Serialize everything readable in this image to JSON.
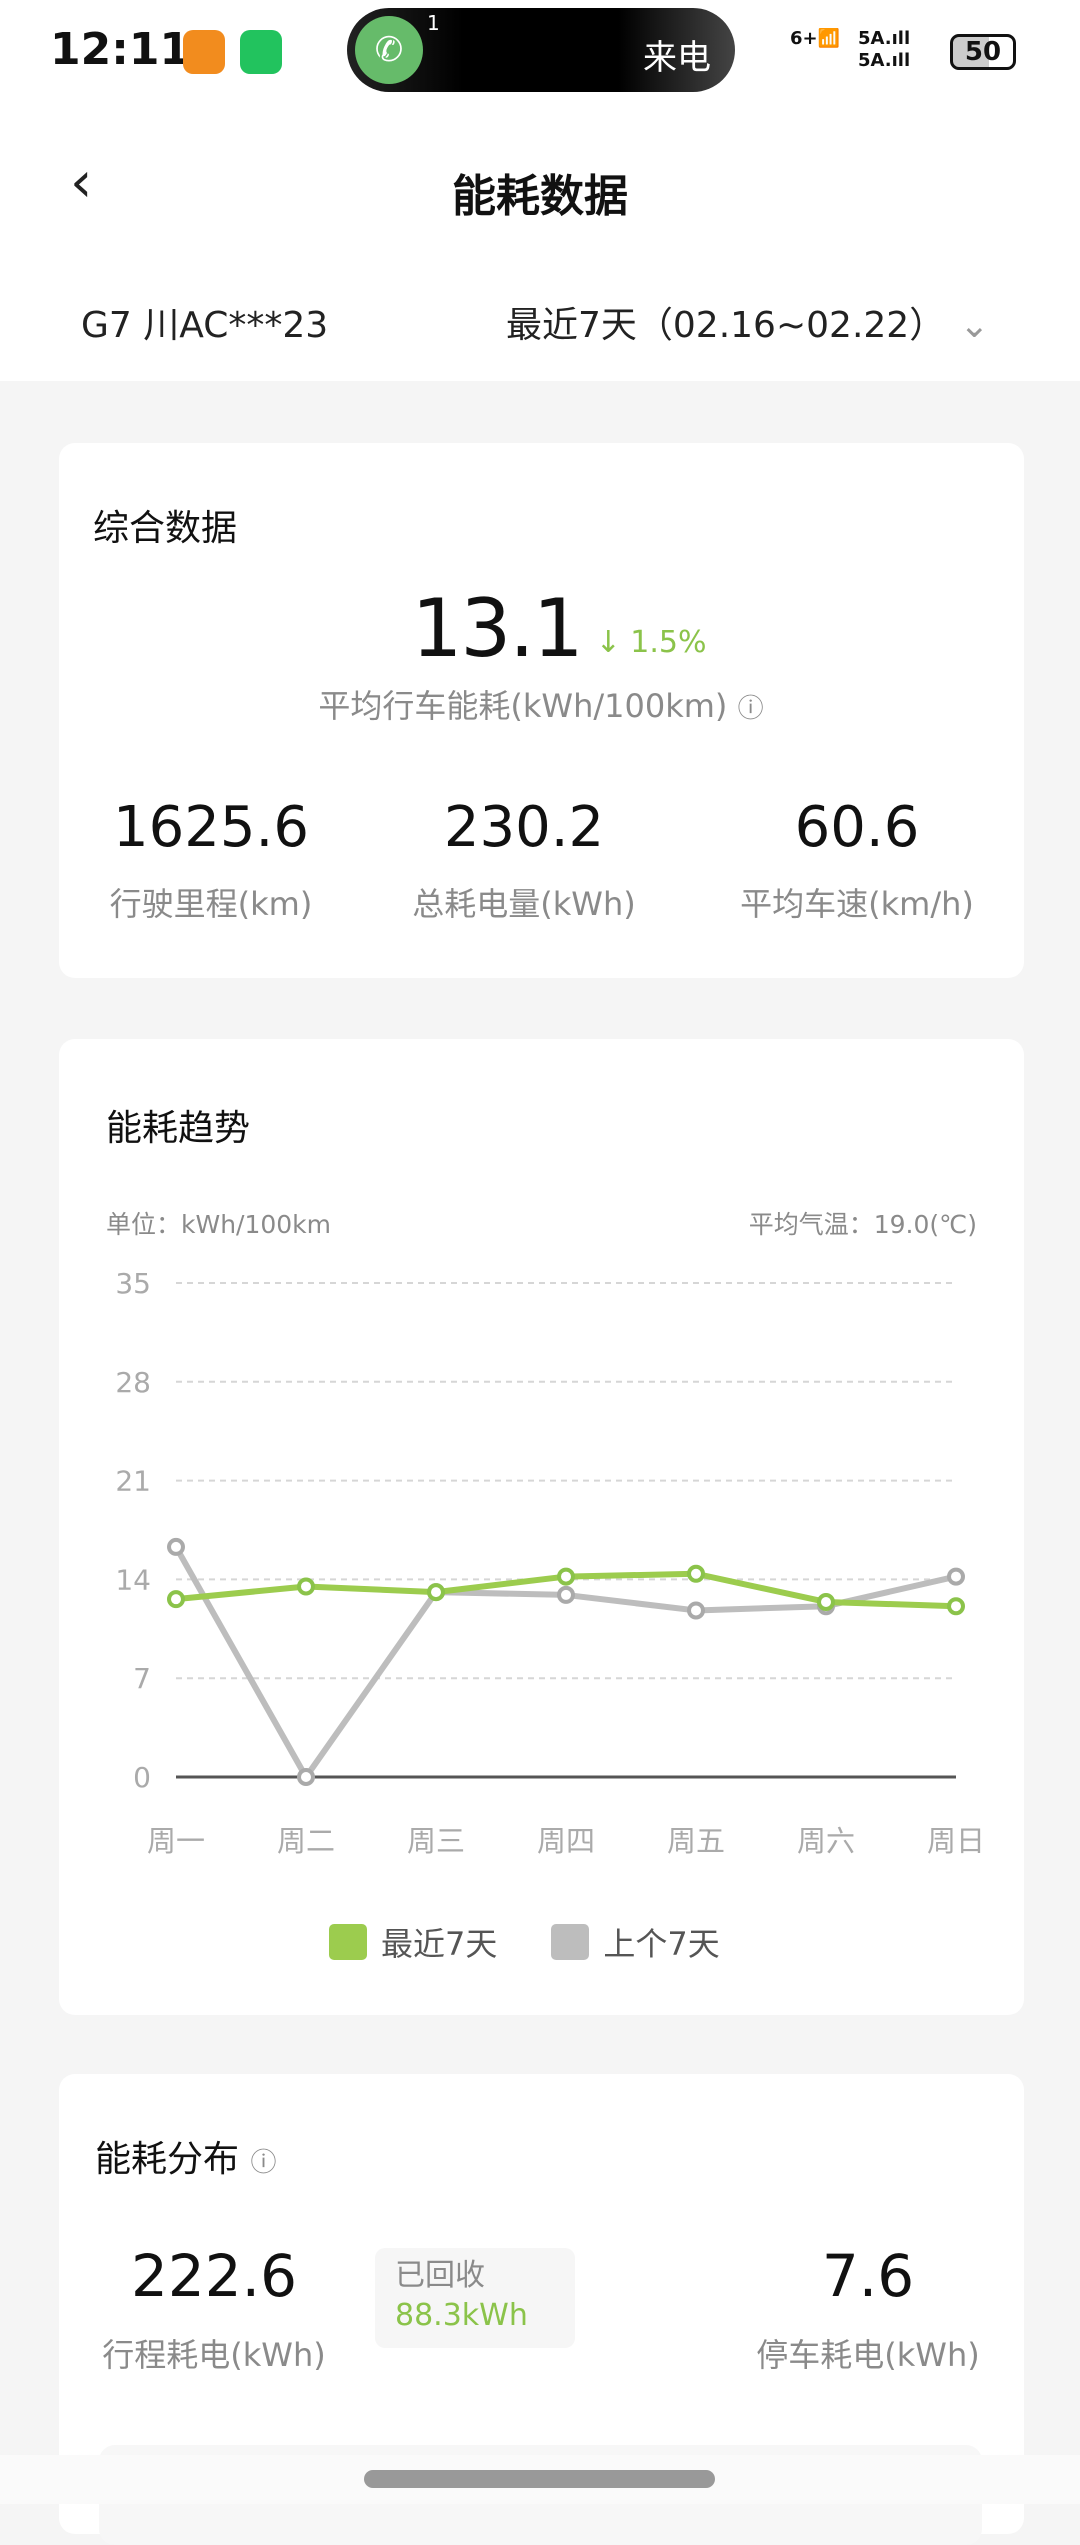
{
  "status_bar": {
    "time": "12:11",
    "call_label": "来电",
    "call_badge": "1",
    "battery": "50",
    "net1": "5A",
    "net2": "5A",
    "wifi": "6+"
  },
  "header": {
    "title": "能耗数据",
    "back_icon": "chevron-left-icon"
  },
  "vehicle": {
    "name": "G7 川AC***23",
    "period": "最近7天（02.16~02.22）"
  },
  "summary": {
    "title": "综合数据",
    "main_value": "13.1",
    "change": "1.5%",
    "change_direction": "down",
    "main_label": "平均行车能耗(kWh/100km)",
    "stats": [
      {
        "value": "1625.6",
        "label": "行驶里程(km)"
      },
      {
        "value": "230.2",
        "label": "总耗电量(kWh)"
      },
      {
        "value": "60.6",
        "label": "平均车速(km/h)"
      }
    ]
  },
  "trend": {
    "title": "能耗趋势",
    "unit": "单位：kWh/100km",
    "avg_temp": "平均气温：19.0(℃)"
  },
  "chart_data": {
    "type": "line",
    "categories": [
      "周一",
      "周二",
      "周三",
      "周四",
      "周五",
      "周六",
      "周日"
    ],
    "yticks": [
      "0",
      "7",
      "14",
      "21",
      "28",
      "35"
    ],
    "ylim": [
      0,
      35
    ],
    "grid": true,
    "legend": "bottom",
    "series": [
      {
        "name": "最近7天",
        "color": "#9ccc4e",
        "values": [
          12.6,
          13.5,
          13.1,
          14.2,
          14.4,
          12.4,
          12.1
        ]
      },
      {
        "name": "上个7天",
        "color": "#bdbdbd",
        "values": [
          16.3,
          0,
          13.1,
          12.9,
          11.8,
          12.1,
          14.2
        ]
      }
    ]
  },
  "distribution": {
    "title": "能耗分布",
    "trip_value": "222.6",
    "trip_label": "行程耗电(kWh)",
    "recovered_label": "已回收",
    "recovered_value": "88.3kWh",
    "park_value": "7.6",
    "park_label": "停车耗电(kWh)"
  },
  "colors": {
    "accent": "#8bc34a",
    "text_gray": "#8a8a8a"
  }
}
